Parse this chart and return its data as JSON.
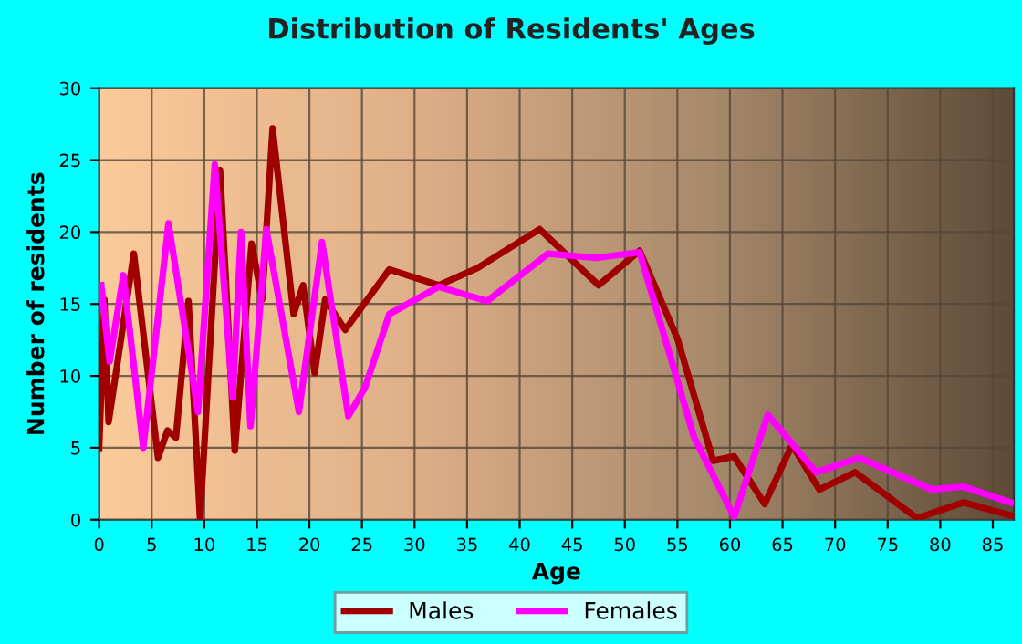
{
  "chart_data": {
    "type": "line",
    "title": "Distribution of Residents' Ages",
    "xlabel": "Age",
    "ylabel": "Number of residents",
    "xlim": [
      0,
      87
    ],
    "xticks": [
      0,
      5,
      10,
      15,
      20,
      25,
      30,
      35,
      40,
      45,
      50,
      55,
      60,
      65,
      70,
      75,
      80,
      85
    ],
    "ylim": [
      0,
      30
    ],
    "yticks": [
      0,
      5,
      10,
      15,
      20,
      25,
      30
    ],
    "grid": true,
    "legend": "bottom",
    "marker": "none",
    "line_style": "solid",
    "series": [
      {
        "name": "Males",
        "color": "#a00000",
        "x": [
          0,
          0.5,
          0.9,
          3.3,
          5.6,
          6.5,
          7.3,
          8.5,
          9.6,
          11.5,
          12.9,
          14.5,
          15.5,
          16.5,
          18.5,
          19.4,
          20.5,
          21.5,
          23.4,
          27.6,
          32.3,
          36,
          41.9,
          47.5,
          51.4,
          55,
          58.4,
          60.4,
          63.3,
          65.9,
          68.5,
          71.9,
          77.8,
          82.2,
          86.7
        ],
        "values": [
          5,
          15.3,
          6.8,
          18.5,
          4.3,
          6.2,
          5.7,
          15.2,
          0,
          24.3,
          4.8,
          19.2,
          15.3,
          27.2,
          14.3,
          16.3,
          10.2,
          15.3,
          13.2,
          17.4,
          16.3,
          17.5,
          20.2,
          16.3,
          18.7,
          12.6,
          4.1,
          4.4,
          1.1,
          5.2,
          2.1,
          3.3,
          0.1,
          1.2,
          0.3
        ]
      },
      {
        "name": "Females",
        "color": "#ff00ff",
        "x": [
          0.2,
          1,
          2.3,
          4.2,
          6.6,
          9.4,
          11,
          12.7,
          13.5,
          14.4,
          15.9,
          19,
          21.2,
          23.7,
          25.3,
          27.6,
          32.3,
          36.9,
          42.7,
          47.3,
          51.4,
          56.6,
          60.4,
          63.6,
          68.2,
          72.3,
          79.2,
          82.2,
          86.7
        ],
        "values": [
          16.3,
          11,
          17,
          5,
          20.6,
          7.5,
          24.7,
          8.5,
          20,
          6.5,
          20.2,
          7.5,
          19.3,
          7.2,
          9.2,
          14.3,
          16.2,
          15.2,
          18.5,
          18.2,
          18.6,
          5.7,
          0.2,
          7.3,
          3.3,
          4.3,
          2.1,
          2.3,
          1.2
        ]
      }
    ]
  }
}
